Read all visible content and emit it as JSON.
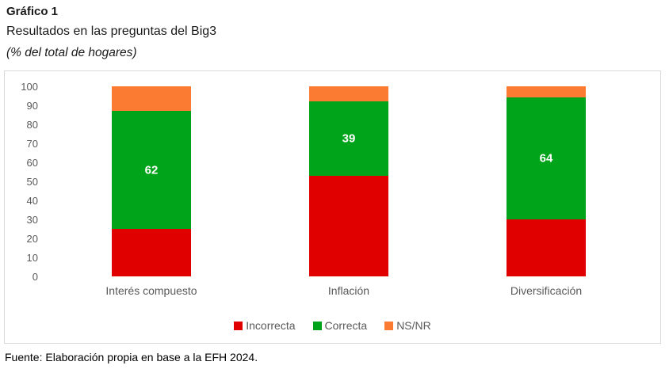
{
  "header": {
    "title": "Gráfico 1",
    "subtitle": "Resultados en las preguntas del Big3",
    "unit_note": "(% del total de hogares)"
  },
  "chart_data": {
    "type": "bar",
    "variant": "stacked-column",
    "title": "Resultados en las preguntas del Big3",
    "unit": "% del total de hogares",
    "categories": [
      "Interés compuesto",
      "Inflación",
      "Diversificación"
    ],
    "series": [
      {
        "name": "Incorrecta",
        "color": "#E00000",
        "values": [
          25,
          53,
          30
        ],
        "show_labels": false
      },
      {
        "name": "Correcta",
        "color": "#00A41B",
        "values": [
          62,
          39,
          64
        ],
        "show_labels": true
      },
      {
        "name": "NS/NR",
        "color": "#FC7B33",
        "values": [
          13,
          8,
          6
        ],
        "show_labels": false
      }
    ],
    "ylim": [
      0,
      100
    ],
    "ytick_step": 10,
    "yticks": [
      0,
      10,
      20,
      30,
      40,
      50,
      60,
      70,
      80,
      90,
      100
    ],
    "grid": false,
    "legend_position": "bottom",
    "data_label_color": "#FFFFFF",
    "axis_text_color": "#595959",
    "plot_border_color": "#D9D9D9"
  },
  "footer": {
    "source": "Fuente: Elaboración propia en base a la EFH 2024."
  }
}
